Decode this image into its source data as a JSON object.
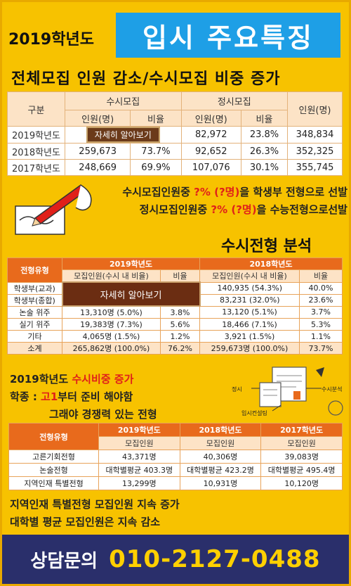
{
  "header": {
    "year": "2019학년도",
    "title": "입시 주요특징",
    "subtitle": "전체모집 인원 감소/수시모집 비중 증가"
  },
  "table1": {
    "col_group": "구분",
    "susi": "수시모집",
    "jeongsi": "정시모집",
    "total": "인원(명)",
    "sub_count": "인원(명)",
    "sub_ratio": "비율",
    "rows": [
      {
        "label": "2019학년도",
        "susi_btn": "자세히 알아보기",
        "j_count": "82,972",
        "j_ratio": "23.8%",
        "total": "348,834"
      },
      {
        "label": "2018학년도",
        "s_count": "259,673",
        "s_ratio": "73.7%",
        "j_count": "92,652",
        "j_ratio": "26.3%",
        "total": "352,325"
      },
      {
        "label": "2017학년도",
        "s_count": "248,669",
        "s_ratio": "69.9%",
        "j_count": "107,076",
        "j_ratio": "30.1%",
        "total": "355,745"
      }
    ]
  },
  "notes": {
    "n1_a": "수시모집인원중 ",
    "n1_red": "?% (?명)",
    "n1_b": "을 학생부 전형으로 선발",
    "n2_a": "정시모집인원중 ",
    "n2_red": "?% (?명)",
    "n2_b": "을 수능전형으로선발"
  },
  "section2": {
    "title": "수시전형 분석",
    "col_type": "전형유형",
    "y2019": "2019학년도",
    "y2018": "2018학년도",
    "sub_recruit": "모집인원(수시 내 비율)",
    "sub_ratio": "비율",
    "btn": "자세히 알아보기",
    "rows": [
      {
        "label": "학생부(교과)",
        "c18": "140,935 (54.3%)",
        "r18": "40.0%"
      },
      {
        "label": "학생부(종합)",
        "c18": "83,231 (32.0%)",
        "r18": "23.6%"
      },
      {
        "label": "논술 위주",
        "c19": "13,310명 (5.0%)",
        "r19": "3.8%",
        "c18": "13,120 (5.1%)",
        "r18": "3.7%"
      },
      {
        "label": "실기 위주",
        "c19": "19,383명 (7.3%)",
        "r19": "5.6%",
        "c18": "18,466 (7.1%)",
        "r18": "5.3%"
      },
      {
        "label": "기타",
        "c19": "4,065명 (1.5%)",
        "r19": "1.2%",
        "c18": "3,921 (1.5%)",
        "r18": "1.1%"
      },
      {
        "label": "소계",
        "c19": "265,862명 (100.0%)",
        "r19": "76.2%",
        "c18": "259,673명 (100.0%)",
        "r18": "73.7%"
      }
    ]
  },
  "mid": {
    "l1_a": "2019학년도 ",
    "l1_red": "수시비중 증가",
    "l2_a": "학종 : ",
    "l2_red": "고1",
    "l2_b": "부터 준비 해야함",
    "l3": "그래야 경쟁력 있는 전형"
  },
  "doc_art": {
    "label_jeongsi": "정시",
    "label_susi": "수시분석",
    "label_consult": "입시컨설팅"
  },
  "table3": {
    "col_type": "전형유형",
    "y2019": "2019학년도",
    "y2018": "2018학년도",
    "y2017": "2017학년도",
    "sub": "모집인원",
    "rows": [
      {
        "label": "고른기회전형",
        "v19": "43,371명",
        "v18": "40,306명",
        "v17": "39,083명"
      },
      {
        "label": "논술전형",
        "v19": "대학별평균 403.3명",
        "v18": "대학별평균 423.2명",
        "v17": "대학별평균 495.4명"
      },
      {
        "label": "지역인재 특별전형",
        "v19": "13,299명",
        "v18": "10,931명",
        "v17": "10,120명"
      }
    ]
  },
  "bottom": {
    "l1": "지역인재 특별전형 모집인원 지속 증가",
    "l2": "대학별 평균 모집인원은 지속 감소"
  },
  "footer": {
    "label": "상담문의",
    "phone": "010-2127-0488"
  },
  "colors": {
    "background": "#f7c200",
    "title_bg": "#1e9fe6",
    "accent_orange": "#e86a1c",
    "accent_red": "#e0201a",
    "footer_bg": "#2a2f6b",
    "footer_phone": "#ffd000"
  }
}
